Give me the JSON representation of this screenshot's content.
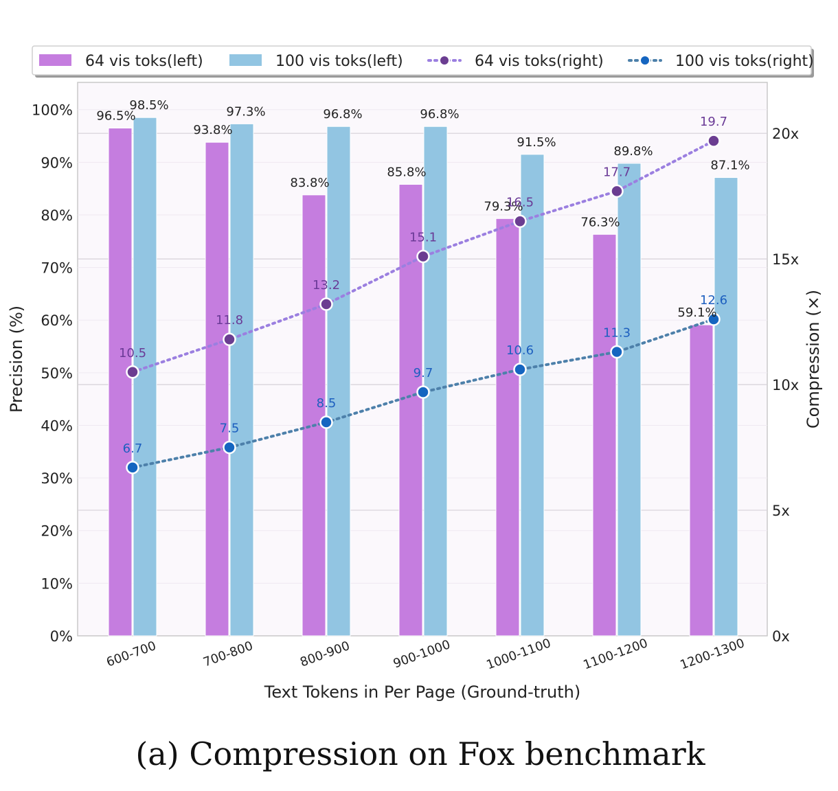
{
  "caption": "(a) Compression on Fox benchmark",
  "chart_data": {
    "type": "bar",
    "xlabel": "Text Tokens in Per Page (Ground-truth)",
    "ylabel": "Precision (%)",
    "y2label": "Compression (×)",
    "ylim": [
      0,
      100
    ],
    "y2lim": [
      0,
      22
    ],
    "y_ticks": [
      "0%",
      "10%",
      "20%",
      "30%",
      "40%",
      "50%",
      "60%",
      "70%",
      "80%",
      "90%",
      "100%"
    ],
    "y2_ticks": [
      "0x",
      "5x",
      "10x",
      "15x",
      "20x"
    ],
    "categories": [
      "600-700",
      "700-800",
      "800-900",
      "900-1000",
      "1000-1100",
      "1100-1200",
      "1200-1300"
    ],
    "legend_position": "top",
    "series": [
      {
        "name": "64 vis toks(left)",
        "kind": "bar",
        "axis": "left",
        "color": "#c57ddf",
        "values": [
          96.5,
          93.8,
          83.8,
          85.8,
          79.3,
          76.3,
          59.1
        ],
        "labels": [
          "96.5%",
          "93.8%",
          "83.8%",
          "85.8%",
          "79.3%",
          "76.3%",
          "59.1%"
        ]
      },
      {
        "name": "100 vis toks(left)",
        "kind": "bar",
        "axis": "left",
        "color": "#92c5e2",
        "values": [
          98.5,
          97.3,
          96.8,
          96.8,
          91.5,
          89.8,
          87.1
        ],
        "labels": [
          "98.5%",
          "97.3%",
          "96.8%",
          "96.8%",
          "91.5%",
          "89.8%",
          "87.1%"
        ]
      },
      {
        "name": "64 vis toks(right)",
        "kind": "line",
        "axis": "right",
        "color": "#9b7fe0",
        "marker_color": "#6b3d91",
        "values": [
          10.5,
          11.8,
          13.2,
          15.1,
          16.5,
          17.7,
          19.7
        ],
        "labels": [
          "10.5",
          "11.8",
          "13.2",
          "15.1",
          "16.5",
          "17.7",
          "19.7"
        ]
      },
      {
        "name": "100 vis toks(right)",
        "kind": "line",
        "axis": "right",
        "color": "#4d80aa",
        "marker_color": "#1565c0",
        "values": [
          6.7,
          7.5,
          8.5,
          9.7,
          10.6,
          11.3,
          12.6
        ],
        "labels": [
          "6.7",
          "7.5",
          "8.5",
          "9.7",
          "10.6",
          "11.3",
          "12.6"
        ]
      }
    ]
  }
}
